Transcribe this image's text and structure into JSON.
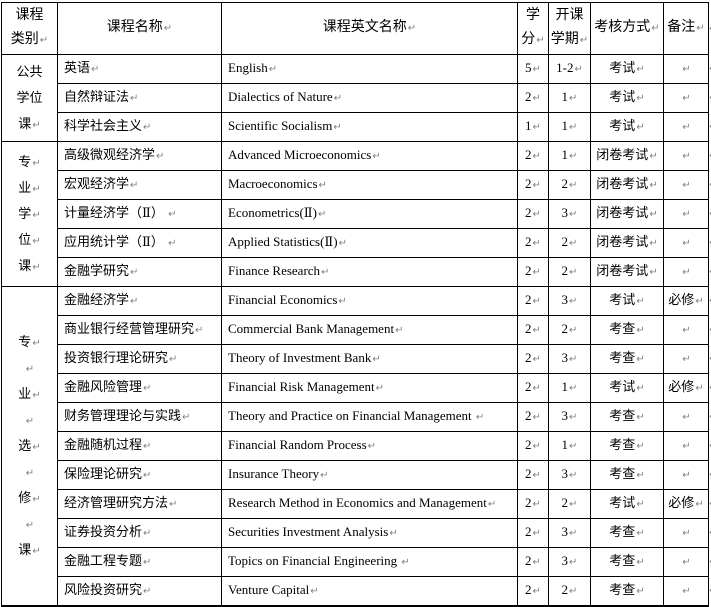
{
  "marks": {
    "paragraph": "↵",
    "row_end": "↵",
    "convention": "a trailing ¶ on any string means a visible gray paragraph mark is rendered after the text"
  },
  "colors": {
    "border": "#000000",
    "text": "#000000",
    "paragraph_mark": "#808080",
    "background": "#ffffff"
  },
  "header": {
    "cells": [
      {
        "key": "category",
        "lines": [
          "课程",
          "类别¶"
        ]
      },
      {
        "key": "name",
        "lines": [
          "课程名称¶"
        ]
      },
      {
        "key": "english",
        "lines": [
          "课程英文名称¶"
        ]
      },
      {
        "key": "credits",
        "lines": [
          "学",
          "分¶"
        ]
      },
      {
        "key": "semester",
        "lines": [
          "开课",
          "学期¶"
        ]
      },
      {
        "key": "assessment",
        "lines": [
          "考核方式¶"
        ]
      },
      {
        "key": "remarks",
        "lines": [
          "备注¶"
        ]
      }
    ]
  },
  "groups": [
    {
      "category_label": "公共学位课",
      "category_lines": [
        "公共",
        "学位",
        "课¶"
      ],
      "rows": [
        {
          "name": "英语¶",
          "en": "English¶",
          "credits": "5¶",
          "semester": "1-2¶",
          "assessment": "考试¶",
          "remark": "¶"
        },
        {
          "name": "自然辩证法¶",
          "en": "Dialectics of Nature¶",
          "credits": "2¶",
          "semester": "1¶",
          "assessment": "考试¶",
          "remark": "¶"
        },
        {
          "name": "科学社会主义¶",
          "en": "Scientific Socialism¶",
          "credits": "1¶",
          "semester": "1¶",
          "assessment": "考试¶",
          "remark": "¶"
        }
      ]
    },
    {
      "category_label": "专业学位课",
      "category_lines": [
        "专¶",
        "业¶",
        "学¶",
        "位¶",
        "课¶"
      ],
      "rows": [
        {
          "name": "高级微观经济学¶",
          "en": "Advanced Microeconomics¶",
          "credits": "2¶",
          "semester": "1¶",
          "assessment": "闭卷考试¶",
          "remark": "¶"
        },
        {
          "name": "宏观经济学¶",
          "en": "Macroeconomics¶",
          "credits": "2¶",
          "semester": "2¶",
          "assessment": "闭卷考试¶",
          "remark": "¶"
        },
        {
          "name": "计量经济学（Ⅱ） ¶",
          "en": "Econometrics(Ⅱ)¶",
          "credits": "2¶",
          "semester": "3¶",
          "assessment": "闭卷考试¶",
          "remark": "¶"
        },
        {
          "name": "应用统计学（Ⅱ） ¶",
          "en": "Applied Statistics(Ⅱ)¶",
          "credits": "2¶",
          "semester": "2¶",
          "assessment": "闭卷考试¶",
          "remark": "¶"
        },
        {
          "name": "金融学研究¶",
          "en": "Finance Research¶",
          "credits": "2¶",
          "semester": "2¶",
          "assessment": "闭卷考试¶",
          "remark": "¶"
        }
      ]
    },
    {
      "category_label": "专业选修课",
      "category_lines": [
        "专¶",
        "¶",
        "业¶",
        "¶",
        "选¶",
        "¶",
        "修¶",
        "¶",
        "课¶"
      ],
      "rows": [
        {
          "name": "金融经济学¶",
          "en": "Financial Economics¶",
          "credits": "2¶",
          "semester": "3¶",
          "assessment": "考试¶",
          "remark": "必修¶"
        },
        {
          "name": "商业银行经营管理研究¶",
          "en": "Commercial Bank Management¶",
          "credits": "2¶",
          "semester": "2¶",
          "assessment": "考查¶",
          "remark": "¶"
        },
        {
          "name": "投资银行理论研究¶",
          "en": "Theory of Investment Bank¶",
          "credits": "2¶",
          "semester": "3¶",
          "assessment": "考查¶",
          "remark": "¶"
        },
        {
          "name": "金融风险管理¶",
          "en": "Financial Risk Management¶",
          "credits": "2¶",
          "semester": "1¶",
          "assessment": "考试¶",
          "remark": "必修¶"
        },
        {
          "name": "财务管理理论与实践¶",
          "en": "Theory and Practice on Financial Management ¶",
          "credits": "2¶",
          "semester": "3¶",
          "assessment": "考查¶",
          "remark": "¶"
        },
        {
          "name": "金融随机过程¶",
          "en": "Financial Random Process¶",
          "credits": "2¶",
          "semester": "1¶",
          "assessment": "考查¶",
          "remark": "¶"
        },
        {
          "name": "保险理论研究¶",
          "en": "Insurance Theory¶",
          "credits": "2¶",
          "semester": "3¶",
          "assessment": "考查¶",
          "remark": "¶"
        },
        {
          "name": "经济管理研究方法¶",
          "en": "Research Method in Economics and Management¶",
          "credits": "2¶",
          "semester": "2¶",
          "assessment": "考试¶",
          "remark": "必修¶"
        },
        {
          "name": "证券投资分析¶",
          "en": "Securities Investment Analysis¶",
          "credits": "2¶",
          "semester": "3¶",
          "assessment": "考查¶",
          "remark": "¶"
        },
        {
          "name": "金融工程专题¶",
          "en": "Topics on Financial Engineering ¶",
          "credits": "2¶",
          "semester": "3¶",
          "assessment": "考查¶",
          "remark": "¶"
        },
        {
          "name": "风险投资研究¶",
          "en": "Venture Capital¶",
          "credits": "2¶",
          "semester": "2¶",
          "assessment": "考查¶",
          "remark": "¶"
        }
      ]
    }
  ]
}
